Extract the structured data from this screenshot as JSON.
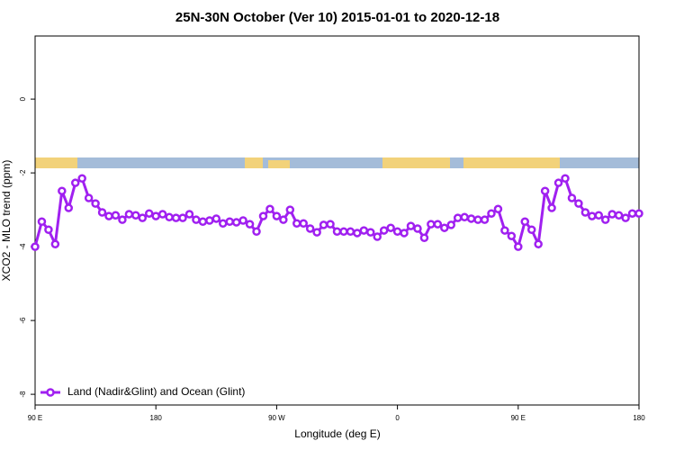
{
  "chart_data": {
    "type": "line",
    "title": "25N-30N October (Ver 10)   2015-01-01 to 2020-12-18",
    "x_label": "Longitude (deg E)",
    "y_label": "XCO2 - MLO trend (ppm)",
    "xlim": [
      90,
      540
    ],
    "ylim": [
      -8.29,
      1.71
    ],
    "xticks": [
      {
        "value": 90,
        "label": "90 E"
      },
      {
        "value": 180,
        "label": "180"
      },
      {
        "value": 270,
        "label": "90 W"
      },
      {
        "value": 360,
        "label": "0"
      },
      {
        "value": 450,
        "label": "90 E"
      },
      {
        "value": 540,
        "label": "180"
      }
    ],
    "yticks": [
      0,
      -2,
      -4,
      -6,
      -8
    ],
    "legend": "bottom-left",
    "x": [
      90,
      95,
      100,
      105,
      110,
      115,
      120,
      125,
      130,
      135,
      140,
      145,
      150,
      155,
      160,
      165,
      170,
      175,
      180,
      185,
      190,
      195,
      200,
      205,
      210,
      215,
      220,
      225,
      230,
      235,
      240,
      245,
      250,
      255,
      260,
      265,
      270,
      275,
      280,
      285,
      290,
      295,
      300,
      305,
      310,
      315,
      320,
      325,
      330,
      335,
      340,
      345,
      350,
      355,
      360,
      365,
      370,
      375,
      380,
      385,
      390,
      395,
      400,
      405,
      410,
      415,
      420,
      425,
      430,
      435,
      440,
      445,
      450,
      455,
      460,
      465,
      470,
      475,
      480,
      485,
      490,
      495,
      500,
      505,
      510,
      515,
      520,
      525,
      530,
      535,
      540
    ],
    "series": [
      {
        "name": "Land (Nadir&Glint) and Ocean (Glint)",
        "color": "#a020f0",
        "values": [
          -4.0,
          -3.32,
          -3.54,
          -3.93,
          -2.49,
          -2.95,
          -2.27,
          -2.15,
          -2.68,
          -2.83,
          -3.07,
          -3.17,
          -3.15,
          -3.27,
          -3.12,
          -3.15,
          -3.22,
          -3.1,
          -3.17,
          -3.12,
          -3.2,
          -3.22,
          -3.22,
          -3.12,
          -3.27,
          -3.32,
          -3.29,
          -3.24,
          -3.37,
          -3.32,
          -3.34,
          -3.29,
          -3.39,
          -3.59,
          -3.17,
          -2.98,
          -3.17,
          -3.27,
          -3.0,
          -3.37,
          -3.37,
          -3.51,
          -3.61,
          -3.41,
          -3.39,
          -3.59,
          -3.59,
          -3.59,
          -3.63,
          -3.56,
          -3.61,
          -3.73,
          -3.56,
          -3.49,
          -3.59,
          -3.63,
          -3.44,
          -3.51,
          -3.76,
          -3.39,
          -3.39,
          -3.49,
          -3.41,
          -3.22,
          -3.2,
          -3.24,
          -3.27,
          -3.27,
          -3.1,
          -2.98,
          -3.56,
          -3.71,
          -4.0,
          -3.32,
          -3.54,
          -3.93,
          -2.49,
          -2.95,
          -2.27,
          -2.15,
          -2.68,
          -2.83,
          -3.07,
          -3.17,
          -3.15,
          -3.27,
          -3.12,
          -3.15,
          -3.22,
          -3.1,
          -3.1
        ]
      }
    ]
  }
}
